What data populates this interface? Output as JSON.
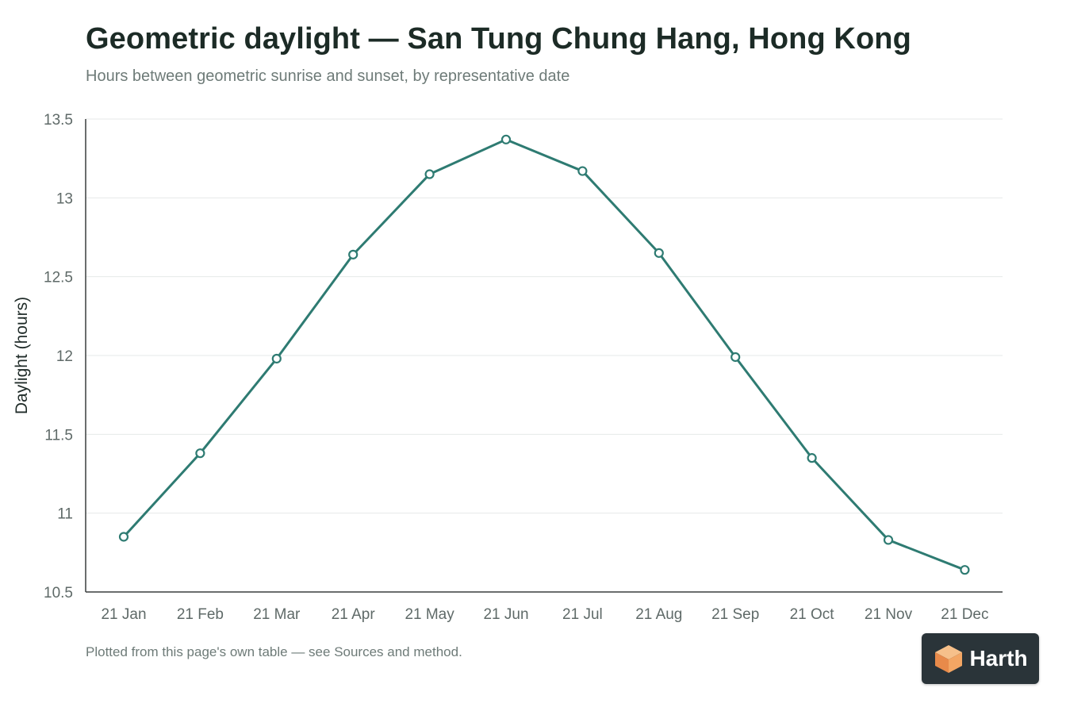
{
  "header": {
    "title": "Geometric daylight — San Tung Chung Hang, Hong Kong",
    "subtitle": "Hours between geometric sunrise and sunset, by representative date"
  },
  "footnote": "Plotted from this page's own table — see Sources and method.",
  "logo": {
    "text": "Harth",
    "icon": "cube-icon",
    "colors": {
      "background": "#2a3439",
      "cube_top": "#f6c08a",
      "cube_left": "#e88a4a",
      "cube_right": "#f3a664"
    }
  },
  "chart_data": {
    "type": "line",
    "categories": [
      "21 Jan",
      "21 Feb",
      "21 Mar",
      "21 Apr",
      "21 May",
      "21 Jun",
      "21 Jul",
      "21 Aug",
      "21 Sep",
      "21 Oct",
      "21 Nov",
      "21 Dec"
    ],
    "series": [
      {
        "values": [
          10.85,
          11.38,
          11.98,
          12.64,
          13.15,
          13.37,
          13.17,
          12.65,
          11.99,
          11.35,
          10.83,
          10.64
        ],
        "color": "#2e7b72"
      }
    ],
    "ylabel": "Daylight (hours)",
    "xlabel": "",
    "ylim": [
      10.5,
      13.5
    ],
    "yticks": [
      10.5,
      11,
      11.5,
      12,
      12.5,
      13,
      13.5
    ],
    "ytick_labels": [
      "10.5",
      "11",
      "11.5",
      "12",
      "12.5",
      "13",
      "13.5"
    ],
    "grid": true,
    "legend": "none"
  }
}
